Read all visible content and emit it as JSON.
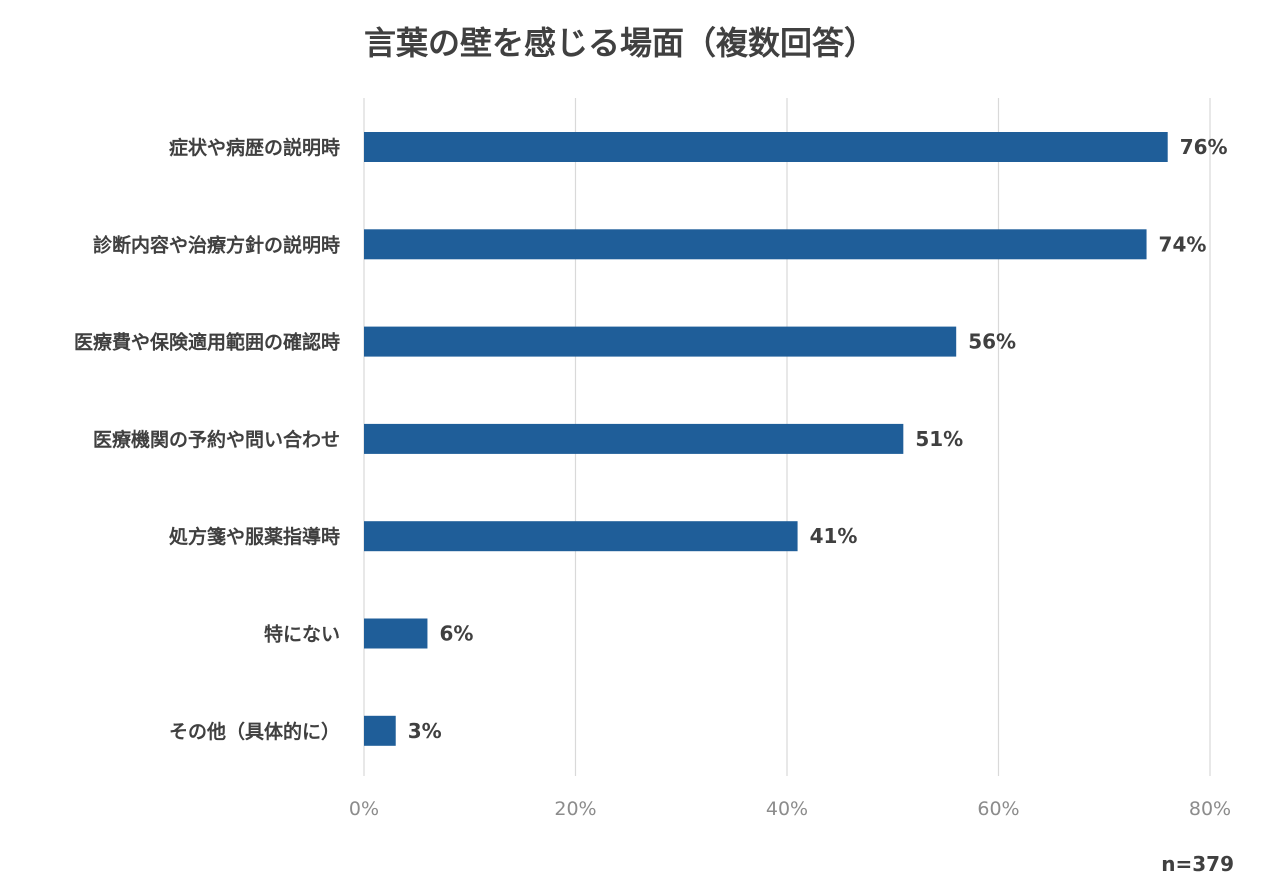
{
  "chart_data": {
    "type": "bar",
    "orientation": "horizontal",
    "title": "言葉の壁を感じる場面（複数回答）",
    "categories": [
      "症状や病歴の説明時",
      "診断内容や治療方針の説明時",
      "医療費や保険適用範囲の確認時",
      "医療機関の予約や問い合わせ",
      "処方箋や服薬指導時",
      "特にない",
      "その他（具体的に）"
    ],
    "values": [
      76,
      74,
      56,
      51,
      41,
      6,
      3
    ],
    "value_labels": [
      "76%",
      "74%",
      "56%",
      "51%",
      "41%",
      "6%",
      "3%"
    ],
    "x_ticks": [
      0,
      20,
      40,
      60,
      80
    ],
    "x_tick_labels": [
      "0%",
      "20%",
      "40%",
      "60%",
      "80%"
    ],
    "xlim": [
      0,
      80
    ],
    "xlabel": "",
    "ylabel": "",
    "grid": "vertical",
    "legend": "none",
    "bar_color": "#1f5e99",
    "sample_size": "n=379"
  }
}
